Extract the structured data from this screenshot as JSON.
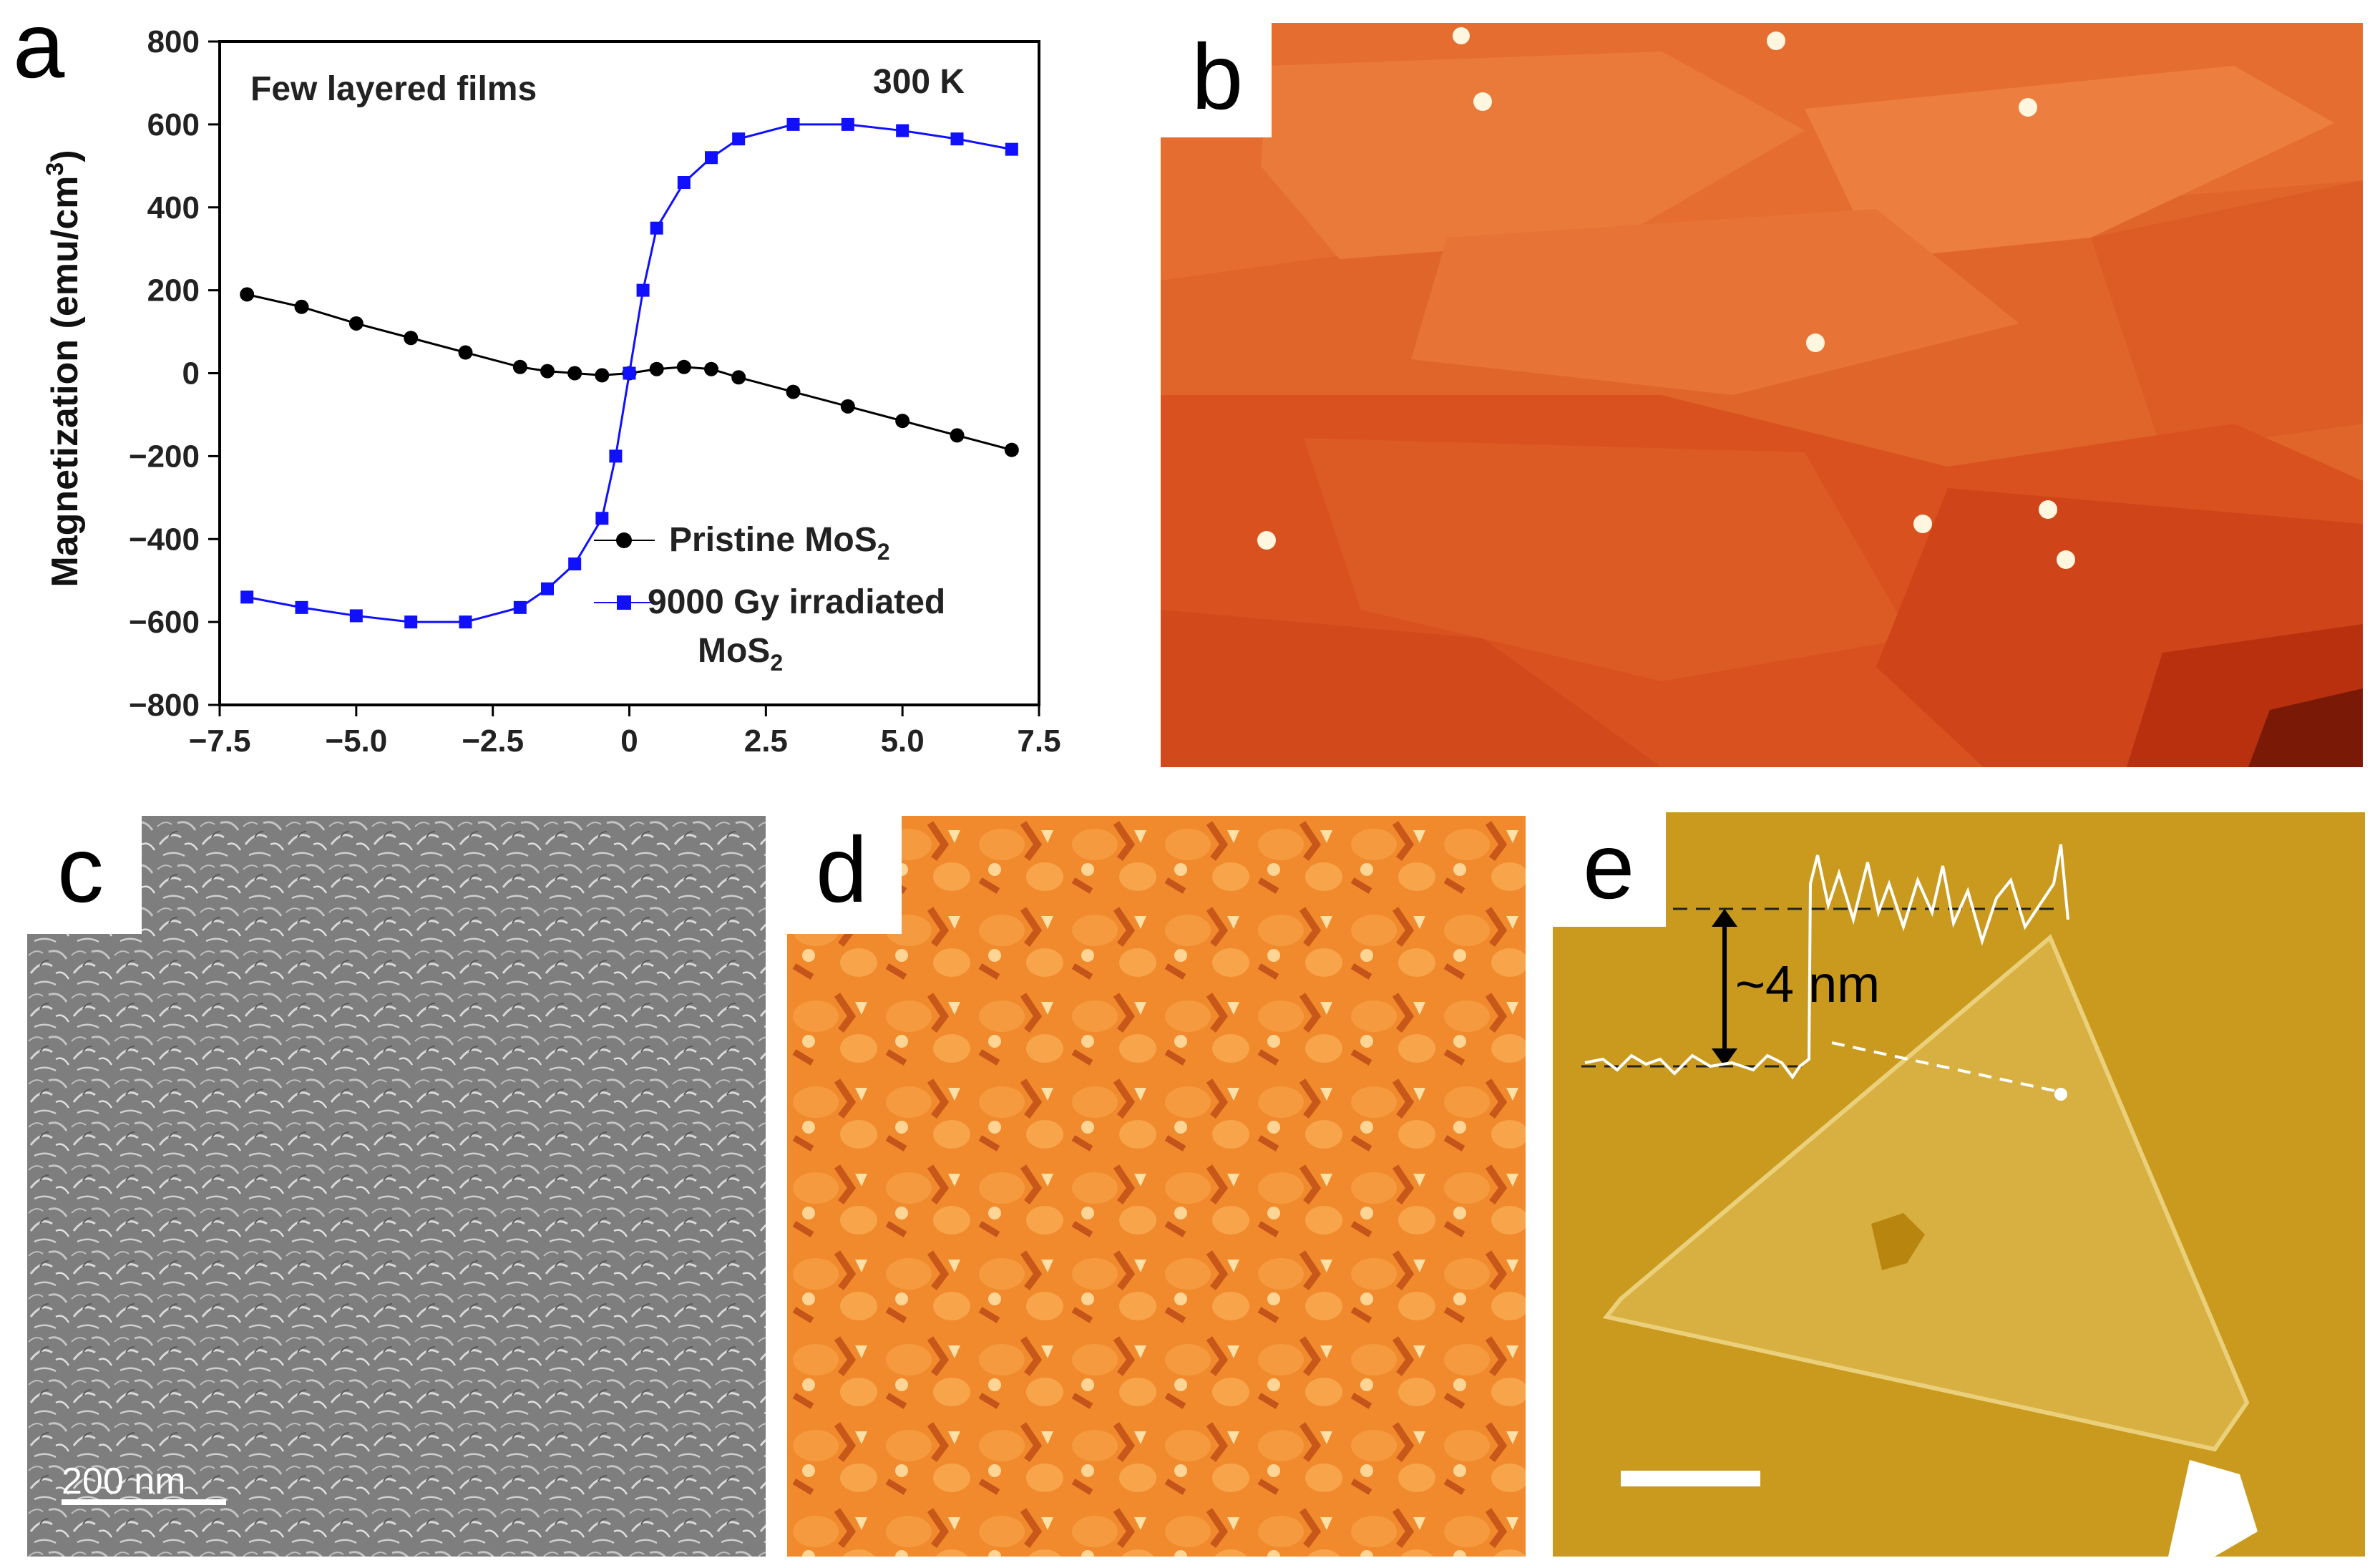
{
  "figure": {
    "panel_labels": [
      "a",
      "b",
      "c",
      "d",
      "e"
    ],
    "scale_bar_c": "200 nm",
    "height_profile_e": "~4 nm"
  },
  "colors": {
    "pristine": "#000000",
    "irradiated": "#1010ff",
    "afm_b_base": "#e0652a",
    "afm_d_base": "#f08a2c",
    "afm_e_base": "#c99a1e",
    "sem_c_base": "#8a8a8a"
  },
  "chart_data": {
    "type": "line",
    "title": "Few layered films",
    "annotation": "300 K",
    "xlabel": "",
    "ylabel": "Magnetization (emu/cm3)",
    "xlim": [
      -7.5,
      7.5
    ],
    "ylim": [
      -800,
      800
    ],
    "xticks": [
      -7.5,
      -5.0,
      -2.5,
      0,
      2.5,
      5.0,
      7.5
    ],
    "xtick_labels": [
      "−7.5",
      "−5.0",
      "−2.5",
      "0",
      "2.5",
      "5.0",
      "7.5"
    ],
    "yticks": [
      800,
      600,
      400,
      200,
      0,
      -200,
      -400,
      -600,
      -800
    ],
    "ytick_labels": [
      "800",
      "600",
      "400",
      "200",
      "0",
      "−200",
      "−400",
      "−600",
      "−800"
    ],
    "legend": [
      "Pristine MoS2",
      "9000 Gy irradiated MoS2"
    ],
    "series": [
      {
        "name": "Pristine MoS2",
        "marker": "circle",
        "x": [
          -7,
          -6,
          -5,
          -4,
          -3,
          -2,
          -1.5,
          -1,
          -0.5,
          0,
          0.5,
          1,
          1.5,
          2,
          3,
          4,
          5,
          6,
          7
        ],
        "y": [
          190,
          160,
          120,
          85,
          50,
          15,
          5,
          0,
          -5,
          0,
          10,
          15,
          10,
          -10,
          -45,
          -80,
          -115,
          -150,
          -185
        ]
      },
      {
        "name": "9000 Gy irradiated MoS2",
        "marker": "square",
        "x": [
          -7,
          -6,
          -5,
          -4,
          -3,
          -2,
          -1.5,
          -1,
          -0.5,
          -0.25,
          0,
          0.25,
          0.5,
          1,
          1.5,
          2,
          3,
          4,
          5,
          6,
          7
        ],
        "y": [
          -540,
          -565,
          -585,
          -600,
          -600,
          -565,
          -520,
          -460,
          -350,
          -200,
          0,
          200,
          350,
          460,
          520,
          565,
          600,
          600,
          585,
          565,
          540
        ]
      }
    ]
  }
}
